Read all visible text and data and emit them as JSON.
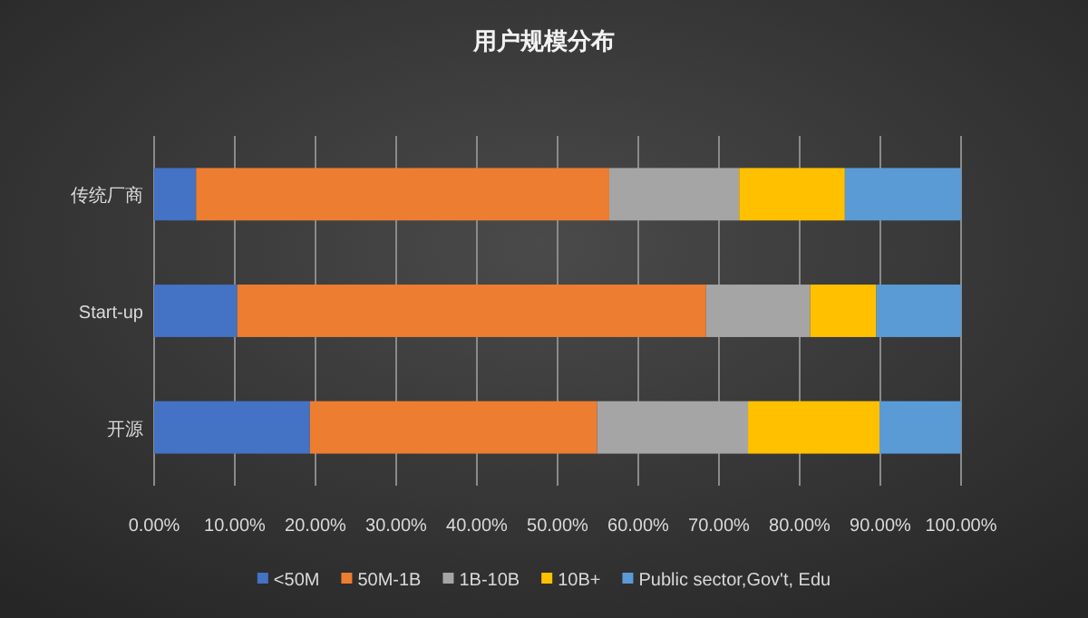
{
  "chart_data": {
    "type": "bar",
    "title": "用户规模分布",
    "orientation": "horizontal",
    "stacked": true,
    "categories": [
      "传统厂商",
      "Start-up",
      "开源"
    ],
    "series": [
      {
        "name": "<50M",
        "color": "#4472c4",
        "values": [
          5.2,
          10.3,
          19.3
        ]
      },
      {
        "name": "50M-1B",
        "color": "#ed7d31",
        "values": [
          51.2,
          58.1,
          35.6
        ]
      },
      {
        "name": "1B-10B",
        "color": "#a5a5a5",
        "values": [
          16.1,
          12.9,
          18.7
        ]
      },
      {
        "name": "10B+",
        "color": "#ffc000",
        "values": [
          13.1,
          8.2,
          16.3
        ]
      },
      {
        "name": "Public sector,Gov't, Edu",
        "color": "#5b9bd5",
        "values": [
          14.4,
          10.5,
          10.1
        ]
      }
    ],
    "xlim": [
      0,
      100
    ],
    "xticks": [
      {
        "value": 0,
        "label": "0.00%"
      },
      {
        "value": 10,
        "label": "10.00%"
      },
      {
        "value": 20,
        "label": "20.00%"
      },
      {
        "value": 30,
        "label": "30.00%"
      },
      {
        "value": 40,
        "label": "40.00%"
      },
      {
        "value": 50,
        "label": "50.00%"
      },
      {
        "value": 60,
        "label": "60.00%"
      },
      {
        "value": 70,
        "label": "70.00%"
      },
      {
        "value": 80,
        "label": "80.00%"
      },
      {
        "value": 90,
        "label": "90.00%"
      },
      {
        "value": 100,
        "label": "100.00%"
      }
    ],
    "grid": "x",
    "legend": "bottom"
  }
}
